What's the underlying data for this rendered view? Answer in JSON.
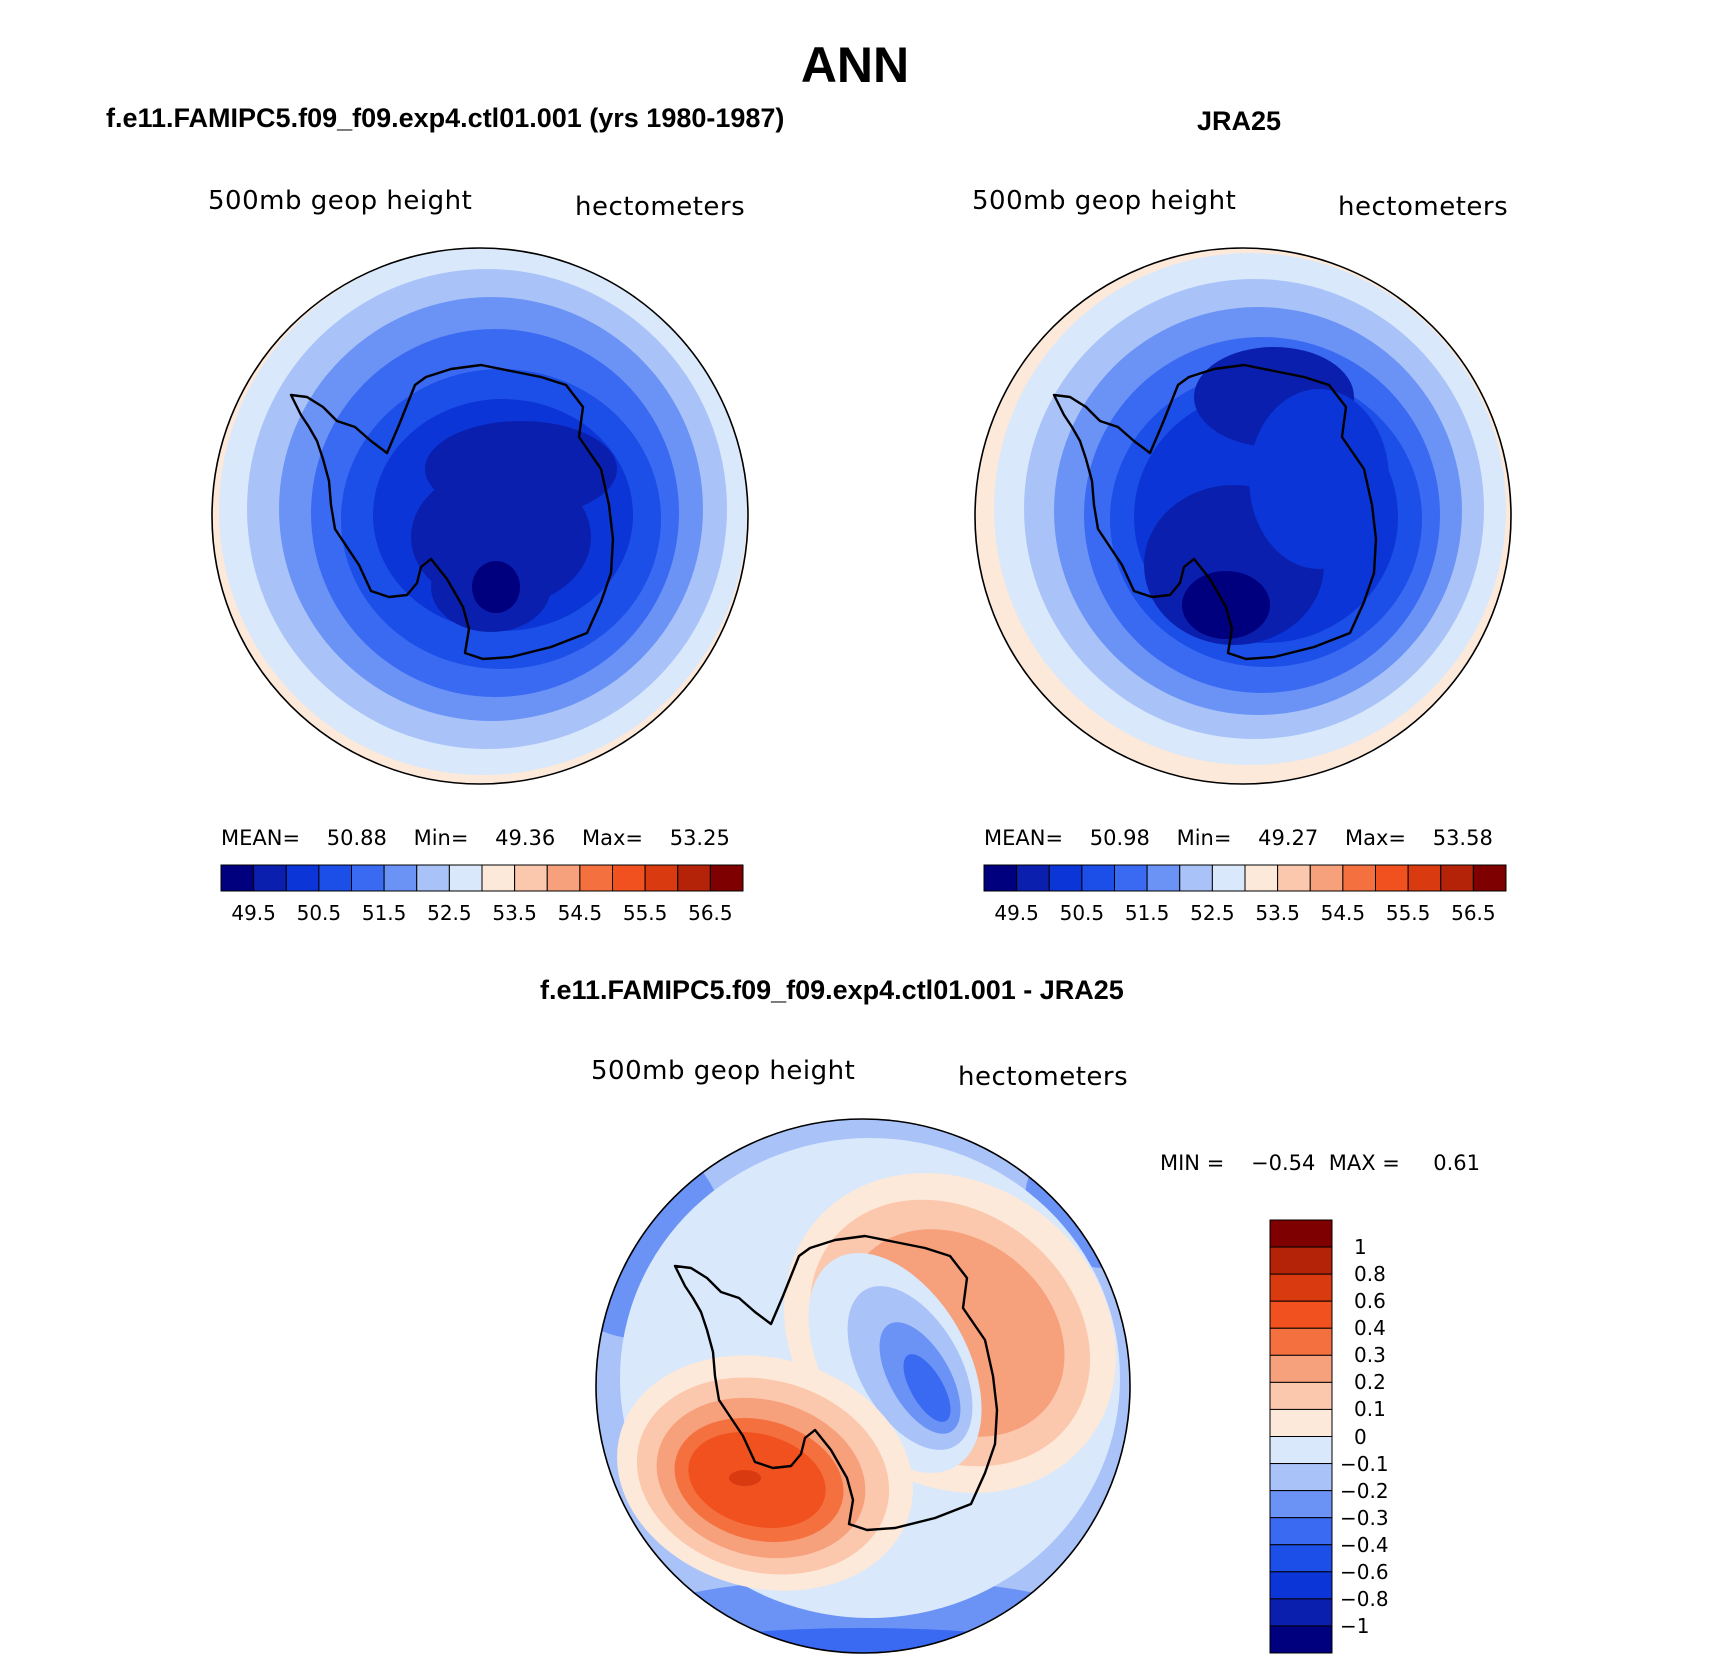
{
  "figure": {
    "title": "ANN"
  },
  "panels": [
    {
      "id": "model",
      "title": "f.e11.FAMIPC5.f09_f09.exp4.ctl01.001 (yrs 1980-1987)",
      "left_label": "500mb geop height",
      "right_label": "hectometers",
      "stats": {
        "mean_label": "MEAN=",
        "mean": "50.88",
        "min_label": "Min=",
        "min": "49.36",
        "max_label": "Max=",
        "max": "53.25"
      }
    },
    {
      "id": "obs",
      "title": "JRA25",
      "left_label": "500mb geop height",
      "right_label": "hectometers",
      "stats": {
        "mean_label": "MEAN=",
        "mean": "50.98",
        "min_label": "Min=",
        "min": "49.27",
        "max_label": "Max=",
        "max": "53.58"
      }
    },
    {
      "id": "diff",
      "title": "f.e11.FAMIPC5.f09_f09.exp4.ctl01.001 - JRA25",
      "left_label": "500mb geop height",
      "right_label": "hectometers",
      "stats": {
        "min_label": "MIN =",
        "min": "−0.54",
        "max_label": "MAX =",
        "max": "0.61"
      }
    }
  ],
  "colorbar_abs": {
    "colors": [
      "#00007f",
      "#0a1fae",
      "#0b35d6",
      "#1c4ee8",
      "#3a6af2",
      "#6b93f6",
      "#a9c3f9",
      "#d9e8fb",
      "#fde9d9",
      "#fbc8ad",
      "#f7a07c",
      "#f4713f",
      "#f0511e",
      "#d93a0f",
      "#b42308",
      "#7f0000"
    ],
    "labels": [
      "49.5",
      "50.5",
      "51.5",
      "52.5",
      "53.5",
      "54.5",
      "55.5",
      "56.5"
    ]
  },
  "colorbar_diff": {
    "colors": [
      "#7f0000",
      "#b42308",
      "#d93a0f",
      "#f0511e",
      "#f4713f",
      "#f7a07c",
      "#fbc8ad",
      "#fde9d9",
      "#d9e8fb",
      "#a9c3f9",
      "#6b93f6",
      "#3a6af2",
      "#1c4ee8",
      "#0b35d6",
      "#0a1fae",
      "#00007f"
    ],
    "labels": [
      "1",
      "0.8",
      "0.6",
      "0.4",
      "0.3",
      "0.2",
      "0.1",
      "0",
      "−0.1",
      "−0.2",
      "−0.3",
      "−0.4",
      "−0.6",
      "−0.8",
      "−1"
    ]
  }
}
